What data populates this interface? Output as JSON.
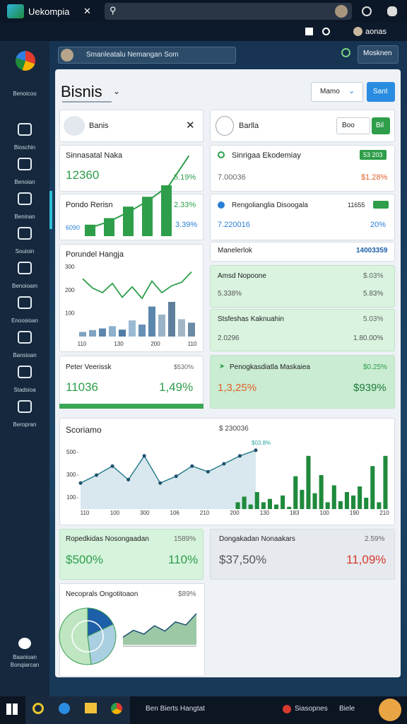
{
  "browser": {
    "tab": "Uekompia",
    "status": "aonas"
  },
  "sidebar": {
    "items": [
      "Benoicoo",
      "Bioschin",
      "Benoian",
      "Beninan",
      "Souioin",
      "Benoioam",
      "Enoosioan",
      "Bansioan",
      "Stadsioa",
      "Beropran"
    ],
    "footer": "Baanioan Bonqiarcan"
  },
  "topbar": {
    "search": "Smanleatalu Nemangan Som",
    "button": "Mosknen"
  },
  "header": {
    "title": "Bisnis",
    "dropdown": "Mamo",
    "button": "Sant"
  },
  "filters": [
    {
      "label": "Banis"
    },
    {
      "label": "Barlla",
      "chips": [
        "Boo",
        "Bil"
      ]
    }
  ],
  "cards": {
    "left": [
      {
        "title": "Sinnasatal Naka",
        "value": "12360",
        "delta": "5.19%"
      },
      {
        "title": "Pondo Rerisn",
        "value": "6090",
        "delta": "2.33%",
        "extra": "3.39%"
      },
      {
        "title": "Peter Veerissk",
        "extra": "$530%",
        "value": "11036",
        "delta": "1,49%"
      }
    ],
    "right": [
      {
        "title": "Sinrigaa Ekodemiay",
        "badge": "53 203",
        "value": "7.00036",
        "delta": "$1.28%"
      },
      {
        "title": "Rengolianglia Disoogala",
        "extra": "11655",
        "value": "7.220016",
        "delta": "20%"
      },
      {
        "title": "Manelerlok",
        "value": "14003359"
      },
      {
        "title": "Amsd Nopoone",
        "extra": "$.03%",
        "value": "5.338%",
        "delta": "5.83%"
      },
      {
        "title": "Stsfeshas Kaknuahin",
        "extra": "5.03%",
        "value": "2.0296",
        "delta": "1.80.00%"
      },
      {
        "title": "Penogkasdiatla Maskaiea",
        "extra": "$0.25%",
        "value": "1,3,25%",
        "delta": "$939%"
      }
    ],
    "bottom": [
      {
        "title": "Ropedkidas Nosongaadan",
        "extra": "1589%",
        "value": "$500%",
        "delta": "110%"
      },
      {
        "title": "Dongakadan Nonaakars",
        "extra": "2.59%",
        "value": "$37,50%",
        "delta": "11,09%"
      }
    ]
  },
  "charts": {
    "growth": {
      "type": "bar",
      "ylim": [
        0,
        100
      ],
      "bars": [
        14,
        22,
        36,
        48,
        62
      ],
      "line": [
        10,
        18,
        30,
        44,
        62,
        98
      ],
      "color": "#2e9e4a"
    },
    "combo": {
      "type": "bar",
      "title": "Porundel Hangja",
      "ylim": [
        0,
        300
      ],
      "yticks": [
        100,
        200,
        300
      ],
      "x_labels": [
        "110",
        "130",
        "200",
        "110"
      ],
      "bars": [
        20,
        28,
        35,
        45,
        30,
        70,
        52,
        130,
        95,
        150,
        75,
        60
      ],
      "bar_colors": [
        "#7fa2c0",
        "#7fa2c0",
        "#5b87ad",
        "#8db0cc",
        "#4f7ca4",
        "#9ab9d3",
        "#6890b6",
        "#5b87ad",
        "#9ab3c6",
        "#5f7f9c",
        "#a2b6c6",
        "#6b8aa5"
      ],
      "line": [
        250,
        210,
        190,
        230,
        170,
        215,
        165,
        240,
        190,
        220,
        235,
        280
      ],
      "line_color": "#2e9e4a"
    },
    "trend": {
      "type": "line",
      "title": "Scoriamo",
      "subtitle": "$ 230036",
      "annotation": "$03.8%",
      "ylim": [
        0,
        600
      ],
      "yticks": [
        100,
        300,
        500
      ],
      "x_labels": [
        "110",
        "100",
        "300",
        "106",
        "210",
        "200",
        "130",
        "183",
        "100",
        "190",
        "210"
      ],
      "line": [
        230,
        300,
        380,
        260,
        470,
        230,
        290,
        380,
        330,
        400,
        470,
        520
      ],
      "line_color": "#2a7e8e",
      "bars": [
        60,
        110,
        40,
        150,
        60,
        90,
        40,
        120,
        20,
        290,
        170,
        470,
        140,
        300,
        60,
        210,
        70,
        150,
        120,
        200,
        100,
        380,
        60,
        470
      ],
      "bar_color": "#1f8a3c"
    },
    "pie": {
      "type": "pie",
      "title": "Necoprals Ongotitoaon",
      "extra": "$89%",
      "values": [
        18,
        30,
        52
      ],
      "colors": [
        "#1d5fa8",
        "#a9cfe0",
        "#bfe6c1"
      ]
    },
    "area": {
      "type": "area",
      "ylim": [
        0,
        100
      ],
      "values": [
        20,
        38,
        28,
        50,
        36,
        60,
        52,
        82
      ],
      "color": "#5aa36a"
    }
  },
  "taskbar": {
    "items": [
      "Ben Bierts Hangtat",
      "Siasopnes",
      "Biele"
    ]
  }
}
